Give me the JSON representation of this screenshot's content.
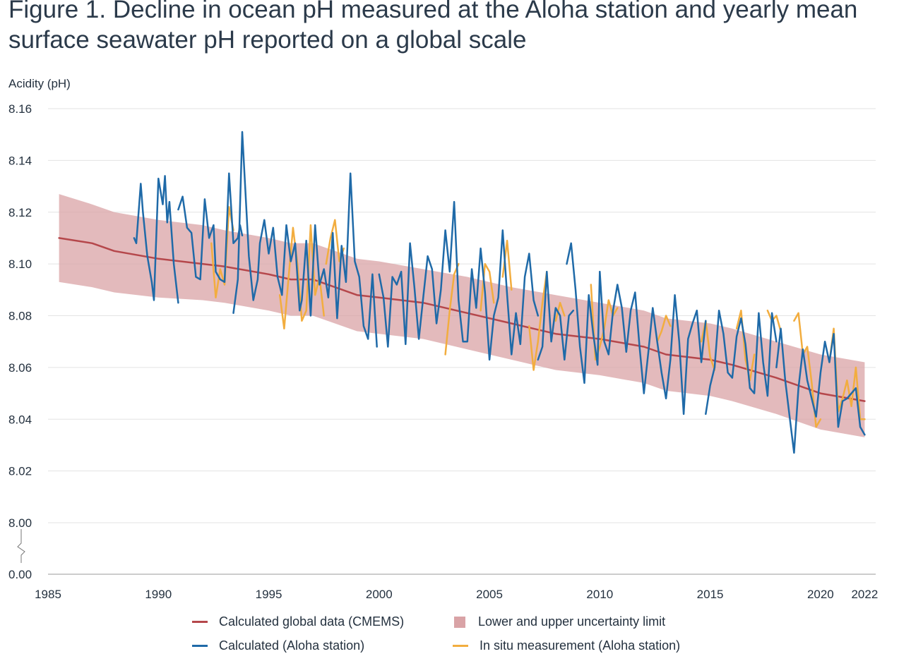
{
  "title_line1": "Figure 1. Decline in ocean pH measured at the Aloha station and yearly mean",
  "title_line2": "surface seawater pH reported on a global scale",
  "colors": {
    "cmems": "#b5474b",
    "band": "#d9a3a6",
    "aloha": "#1f6aa8",
    "insitu": "#f2ad3f",
    "grid": "#e3e3e3",
    "axis": "#999999",
    "text": "#24313f"
  },
  "chart_data": {
    "type": "line",
    "ylabel": "Acidity (pH)",
    "y_ticks": [
      "8.16",
      "8.14",
      "8.12",
      "8.10",
      "8.08",
      "8.06",
      "8.04",
      "8.02",
      "8.00",
      "0.00"
    ],
    "x_ticks": [
      "1985",
      "1990",
      "1995",
      "2000",
      "2005",
      "2010",
      "2015",
      "2020",
      "2022"
    ],
    "xlim": [
      1985,
      2022.5
    ],
    "ylim": [
      8.0,
      8.16
    ],
    "y_break": true,
    "grid": true,
    "series": [
      {
        "name": "Calculated global data (CMEMS)",
        "kind": "line",
        "x": [
          1985.5,
          1987,
          1988,
          1990,
          1992,
          1993,
          1995,
          1996,
          1997,
          1998,
          1999,
          2000,
          2002,
          2004,
          2006,
          2008,
          2010,
          2012,
          2013,
          2015,
          2016,
          2018,
          2020,
          2022
        ],
        "y": [
          8.11,
          8.108,
          8.105,
          8.102,
          8.1,
          8.099,
          8.096,
          8.094,
          8.094,
          8.091,
          8.088,
          8.087,
          8.085,
          8.081,
          8.077,
          8.073,
          8.071,
          8.068,
          8.065,
          8.063,
          8.061,
          8.056,
          8.05,
          8.047
        ]
      },
      {
        "name": "Lower and upper uncertainty limit",
        "kind": "band",
        "x": [
          1985.5,
          1987,
          1988,
          1990,
          1992,
          1993,
          1995,
          1996,
          1997,
          1998,
          1999,
          2000,
          2002,
          2004,
          2006,
          2008,
          2010,
          2012,
          2013,
          2015,
          2016,
          2018,
          2020,
          2022
        ],
        "upper": [
          8.127,
          8.123,
          8.12,
          8.117,
          8.115,
          8.113,
          8.11,
          8.108,
          8.108,
          8.105,
          8.102,
          8.101,
          8.098,
          8.095,
          8.091,
          8.088,
          8.085,
          8.082,
          8.079,
          8.077,
          8.075,
          8.07,
          8.065,
          8.062
        ],
        "lower": [
          8.093,
          8.091,
          8.089,
          8.087,
          8.086,
          8.085,
          8.082,
          8.08,
          8.08,
          8.077,
          8.074,
          8.073,
          8.071,
          8.067,
          8.063,
          8.059,
          8.057,
          8.054,
          8.051,
          8.049,
          8.047,
          8.042,
          8.036,
          8.033
        ]
      },
      {
        "name": "Calculated (Aloha station)",
        "kind": "line",
        "segments": [
          {
            "x": [
              1988.9,
              1989.0,
              1989.2,
              1989.3,
              1989.5,
              1989.7,
              1989.8,
              1990.0,
              1990.2,
              1990.3,
              1990.4,
              1990.5,
              1990.7,
              1990.9
            ],
            "y": [
              8.11,
              8.108,
              8.131,
              8.12,
              8.103,
              8.093,
              8.086,
              8.133,
              8.123,
              8.134,
              8.116,
              8.124,
              8.1,
              8.085
            ]
          },
          {
            "x": [
              1990.9,
              1991.1,
              1991.3,
              1991.5,
              1991.7,
              1991.9,
              1992.1,
              1992.3,
              1992.5,
              1992.6,
              1992.8,
              1993.0,
              1993.2,
              1993.4,
              1993.6,
              1993.7,
              1993.8
            ],
            "y": [
              8.121,
              8.126,
              8.114,
              8.112,
              8.095,
              8.094,
              8.125,
              8.11,
              8.115,
              8.097,
              8.094,
              8.093,
              8.135,
              8.108,
              8.11,
              8.115,
              8.111
            ]
          },
          {
            "x": [
              1993.4,
              1993.6,
              1993.8,
              1994.0,
              1994.1,
              1994.3,
              1994.5,
              1994.6,
              1994.8,
              1995.0,
              1995.2,
              1995.4,
              1995.6,
              1995.8,
              1996.0,
              1996.2,
              1996.4,
              1996.5,
              1996.7,
              1996.9,
              1997.1,
              1997.3,
              1997.5,
              1997.7,
              1997.9,
              1998.1,
              1998.3,
              1998.5,
              1998.7,
              1998.9,
              1999.1,
              1999.3,
              1999.5,
              1999.7,
              1999.9
            ],
            "y": [
              8.081,
              8.094,
              8.151,
              8.119,
              8.103,
              8.086,
              8.094,
              8.108,
              8.117,
              8.104,
              8.114,
              8.095,
              8.088,
              8.115,
              8.101,
              8.108,
              8.082,
              8.086,
              8.109,
              8.08,
              8.115,
              8.092,
              8.098,
              8.087,
              8.112,
              8.079,
              8.107,
              8.093,
              8.135,
              8.101,
              8.095,
              8.076,
              8.071,
              8.096,
              8.068
            ]
          },
          {
            "x": [
              2000.0,
              2000.2,
              2000.4,
              2000.6,
              2000.8,
              2001.0,
              2001.2,
              2001.4,
              2001.6,
              2001.8,
              2002.0,
              2002.2,
              2002.4,
              2002.6,
              2002.8,
              2003.0,
              2003.2,
              2003.4,
              2003.6,
              2003.8,
              2004.0,
              2004.2,
              2004.4,
              2004.6,
              2004.8,
              2005.0,
              2005.2,
              2005.4,
              2005.6,
              2005.8,
              2006.0,
              2006.2,
              2006.4,
              2006.6,
              2006.8,
              2007.0,
              2007.2
            ],
            "y": [
              8.096,
              8.087,
              8.068,
              8.095,
              8.092,
              8.097,
              8.069,
              8.108,
              8.091,
              8.071,
              8.087,
              8.103,
              8.098,
              8.077,
              8.09,
              8.113,
              8.097,
              8.124,
              8.086,
              8.07,
              8.07,
              8.098,
              8.083,
              8.106,
              8.089,
              8.063,
              8.08,
              8.087,
              8.113,
              8.088,
              8.065,
              8.081,
              8.069,
              8.095,
              8.104,
              8.086,
              8.08
            ]
          },
          {
            "x": [
              2007.2,
              2007.4,
              2007.6,
              2007.8,
              2008.0,
              2008.2,
              2008.4,
              2008.6,
              2008.8
            ],
            "y": [
              8.063,
              8.068,
              8.097,
              8.07,
              8.083,
              8.08,
              8.063,
              8.08,
              8.082
            ]
          },
          {
            "x": [
              2008.5,
              2008.7,
              2008.9,
              2009.1,
              2009.3,
              2009.5,
              2009.7,
              2009.9,
              2010.0,
              2010.2,
              2010.4,
              2010.6,
              2010.8,
              2011.0,
              2011.2,
              2011.4,
              2011.6,
              2011.8,
              2012.0,
              2012.2,
              2012.4,
              2012.6,
              2012.8,
              2013.0,
              2013.2,
              2013.4,
              2013.6,
              2013.8,
              2014.0,
              2014.2,
              2014.4,
              2014.6,
              2014.8
            ],
            "y": [
              8.1,
              8.108,
              8.09,
              8.068,
              8.054,
              8.088,
              8.073,
              8.061,
              8.097,
              8.07,
              8.065,
              8.082,
              8.092,
              8.083,
              8.066,
              8.082,
              8.089,
              8.068,
              8.05,
              8.066,
              8.083,
              8.07,
              8.058,
              8.048,
              8.063,
              8.088,
              8.07,
              8.042,
              8.071,
              8.077,
              8.082,
              8.062,
              8.078
            ]
          },
          {
            "x": [
              2014.8,
              2015.0,
              2015.2,
              2015.4,
              2015.6,
              2015.8,
              2016.0,
              2016.2,
              2016.4,
              2016.6,
              2016.8,
              2017.0,
              2017.2,
              2017.4,
              2017.6,
              2017.8,
              2018.0
            ],
            "y": [
              8.042,
              8.053,
              8.06,
              8.082,
              8.073,
              8.058,
              8.056,
              8.072,
              8.079,
              8.069,
              8.052,
              8.05,
              8.081,
              8.062,
              8.049,
              8.081,
              8.07
            ]
          },
          {
            "x": [
              2018.0,
              2018.2,
              2018.4,
              2018.6,
              2018.8,
              2019.0,
              2019.2,
              2019.4,
              2019.6,
              2019.8,
              2020.0,
              2020.2,
              2020.4,
              2020.6,
              2020.8,
              2021.0,
              2021.2,
              2021.4,
              2021.6,
              2021.8,
              2022.0
            ],
            "y": [
              8.06,
              8.075,
              8.055,
              8.041,
              8.027,
              8.052,
              8.067,
              8.055,
              8.048,
              8.041,
              8.058,
              8.07,
              8.062,
              8.073,
              8.037,
              8.047,
              8.048,
              8.05,
              8.052,
              8.037,
              8.034
            ]
          }
        ]
      },
      {
        "name": "In situ measurement (Aloha station)",
        "kind": "line",
        "segments": [
          {
            "x": [
              1992.4,
              1992.6,
              1992.8,
              1993.0,
              1993.2,
              1993.4
            ],
            "y": [
              8.108,
              8.087,
              8.098,
              8.092,
              8.122,
              8.113
            ]
          },
          {
            "x": [
              1995.5,
              1995.7,
              1995.9,
              1996.1,
              1996.3,
              1996.5,
              1996.7,
              1996.9,
              1997.1,
              1997.3,
              1997.5
            ],
            "y": [
              8.088,
              8.075,
              8.095,
              8.114,
              8.1,
              8.078,
              8.082,
              8.115,
              8.088,
              8.095,
              8.08
            ]
          },
          {
            "x": [
              1997.6,
              1997.8,
              1998.0,
              1998.2,
              1998.4
            ],
            "y": [
              8.1,
              8.11,
              8.117,
              8.101,
              8.106
            ]
          },
          {
            "x": [
              2003.0,
              2003.2,
              2003.4,
              2003.6
            ],
            "y": [
              8.065,
              8.082,
              8.096,
              8.1
            ]
          },
          {
            "x": [
              2004.6,
              2004.8,
              2005.0,
              2005.2
            ],
            "y": [
              8.082,
              8.1,
              8.097,
              8.085
            ]
          },
          {
            "x": [
              2005.6,
              2005.8,
              2006.0
            ],
            "y": [
              8.095,
              8.109,
              8.09
            ]
          },
          {
            "x": [
              2006.8,
              2007.0,
              2007.2,
              2007.4,
              2007.6
            ],
            "y": [
              8.076,
              8.059,
              8.07,
              8.085,
              8.097
            ]
          },
          {
            "x": [
              2008.0,
              2008.2,
              2008.4
            ],
            "y": [
              8.078,
              8.085,
              8.08
            ]
          },
          {
            "x": [
              2009.6,
              2009.8,
              2010.0,
              2010.2,
              2010.4,
              2010.6,
              2010.8
            ],
            "y": [
              8.092,
              8.063,
              8.068,
              8.075,
              8.086,
              8.08,
              8.083
            ]
          },
          {
            "x": [
              2012.6,
              2012.8,
              2013.0,
              2013.2
            ],
            "y": [
              8.07,
              8.074,
              8.08,
              8.076
            ]
          },
          {
            "x": [
              2014.6,
              2014.8,
              2015.0,
              2015.2
            ],
            "y": [
              8.07,
              8.078,
              8.064,
              8.059
            ]
          },
          {
            "x": [
              2016.2,
              2016.4,
              2016.6,
              2016.8,
              2017.0
            ],
            "y": [
              8.075,
              8.082,
              8.063,
              8.055,
              8.065
            ]
          },
          {
            "x": [
              2017.6,
              2017.8,
              2018.0,
              2018.2
            ],
            "y": [
              8.082,
              8.078,
              8.08,
              8.074
            ]
          },
          {
            "x": [
              2018.8,
              2019.0,
              2019.2,
              2019.4,
              2019.6,
              2019.8,
              2020.0
            ],
            "y": [
              8.078,
              8.081,
              8.065,
              8.068,
              8.054,
              8.037,
              8.04
            ]
          },
          {
            "x": [
              2020.4,
              2020.6,
              2020.8,
              2021.0,
              2021.2,
              2021.4,
              2021.6,
              2021.8,
              2022.0
            ],
            "y": [
              8.062,
              8.075,
              8.043,
              8.048,
              8.055,
              8.045,
              8.06,
              8.04,
              8.04
            ]
          }
        ]
      }
    ],
    "legend": [
      {
        "label": "Calculated global data (CMEMS)",
        "swatch": "line",
        "color_key": "cmems"
      },
      {
        "label": "Lower and upper uncertainty limit",
        "swatch": "box",
        "color_key": "band"
      },
      {
        "label": "Calculated (Aloha station)",
        "swatch": "line",
        "color_key": "aloha"
      },
      {
        "label": "In situ measurement (Aloha station)",
        "swatch": "line",
        "color_key": "insitu"
      }
    ],
    "legend_placement": "bottom"
  }
}
